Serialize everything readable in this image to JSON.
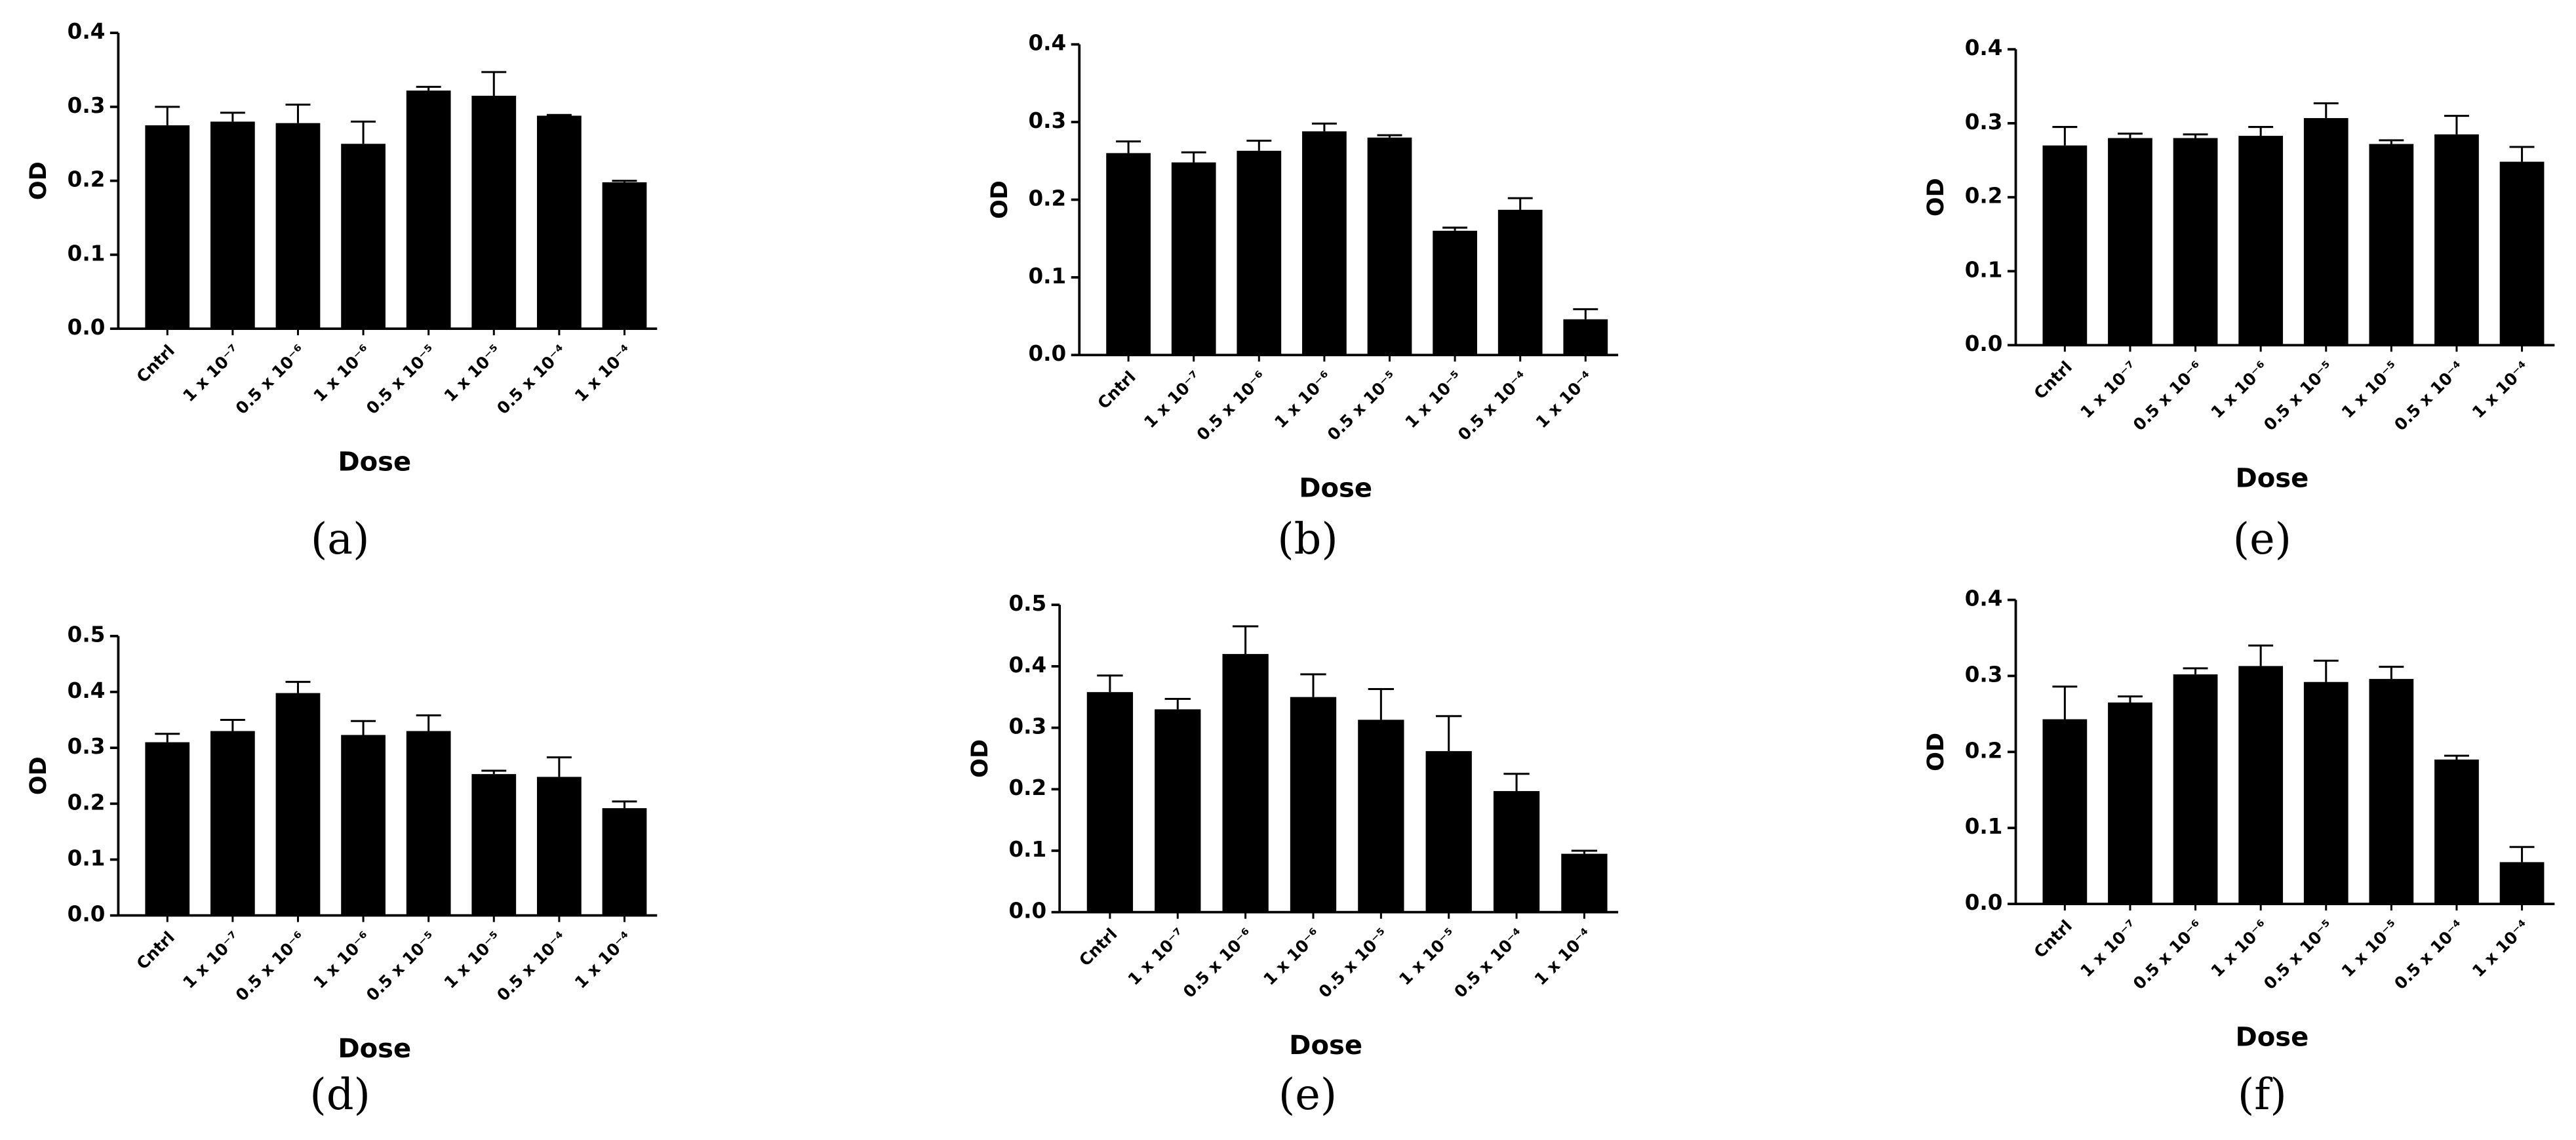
{
  "chart_data": [
    {
      "type": "bar",
      "caption": "(a)",
      "x_label": "Dose",
      "y_label": "OD",
      "categories": [
        "Cntrl",
        "1 x 10⁻⁷",
        "0.5 x 10⁻⁶",
        "1 x 10⁻⁶",
        "0.5 x 10⁻⁵",
        "1 x 10⁻⁵",
        "0.5 x 10⁻⁴",
        "1 x 10⁻⁴"
      ],
      "values": [
        0.275,
        0.28,
        0.278,
        0.25,
        0.322,
        0.315,
        0.288,
        0.198
      ],
      "errors": [
        0.025,
        0.012,
        0.025,
        0.03,
        0.005,
        0.032,
        0.001,
        0.002
      ],
      "color": "#000000",
      "ylim": [
        0,
        0.4
      ],
      "yticks": [
        {
          "value": 0,
          "label": "0.0"
        },
        0.1,
        0.2,
        0.3,
        0.4
      ]
    },
    {
      "type": "bar",
      "caption": "(b)",
      "x_label": "Dose",
      "y_label": "OD",
      "categories": [
        "Cntrl",
        "1 x 10⁻⁷",
        "0.5 x 10⁻⁶",
        "1 x 10⁻⁶",
        "0.5 x 10⁻⁵",
        "1 x 10⁻⁵",
        "0.5 x 10⁻⁴",
        "1 x 10⁻⁴"
      ],
      "values": [
        0.26,
        0.248,
        0.263,
        0.288,
        0.28,
        0.16,
        0.187,
        0.046
      ],
      "errors": [
        0.015,
        0.013,
        0.013,
        0.01,
        0.003,
        0.004,
        0.015,
        0.013
      ],
      "color": "#000000",
      "ylim": [
        0,
        0.4
      ],
      "yticks": [
        {
          "value": 0,
          "label": "0.0"
        },
        0.1,
        0.2,
        0.3,
        0.4
      ]
    },
    {
      "type": "bar",
      "caption": "(e)",
      "x_label": "Dose",
      "y_label": "OD",
      "categories": [
        "Cntrl",
        "1 x 10⁻⁷",
        "0.5 x 10⁻⁶",
        "1 x 10⁻⁶",
        "0.5 x 10⁻⁵",
        "1 x 10⁻⁵",
        "0.5 x 10⁻⁴",
        "1 x 10⁻⁴"
      ],
      "values": [
        0.27,
        0.28,
        0.28,
        0.283,
        0.307,
        0.272,
        0.285,
        0.248
      ],
      "errors": [
        0.025,
        0.006,
        0.005,
        0.012,
        0.02,
        0.005,
        0.025,
        0.02
      ],
      "color": "#000000",
      "ylim": [
        0,
        0.4
      ],
      "yticks": [
        {
          "value": 0,
          "label": "0.0"
        },
        0.1,
        0.2,
        0.3,
        0.4
      ]
    },
    {
      "type": "bar",
      "caption": "(d)",
      "x_label": "Dose",
      "y_label": "OD",
      "categories": [
        "Cntrl",
        "1 x 10⁻⁷",
        "0.5 x 10⁻⁶",
        "1 x 10⁻⁶",
        "0.5 x 10⁻⁵",
        "1 x 10⁻⁵",
        "0.5 x 10⁻⁴",
        "1 x 10⁻⁴"
      ],
      "values": [
        0.31,
        0.33,
        0.398,
        0.323,
        0.33,
        0.253,
        0.248,
        0.192
      ],
      "errors": [
        0.015,
        0.02,
        0.02,
        0.025,
        0.028,
        0.006,
        0.035,
        0.012
      ],
      "color": "#000000",
      "ylim": [
        0,
        0.5
      ],
      "yticks": [
        {
          "value": 0,
          "label": "0.0"
        },
        0.1,
        0.2,
        0.3,
        0.4,
        0.5
      ]
    },
    {
      "type": "bar",
      "caption": "(e)",
      "x_label": "Dose",
      "y_label": "OD",
      "categories": [
        "Cntrl",
        "1 x 10⁻⁷",
        "0.5 x 10⁻⁶",
        "1 x 10⁻⁶",
        "0.5 x 10⁻⁵",
        "1 x 10⁻⁵",
        "0.5 x 10⁻⁴",
        "1 x 10⁻⁴"
      ],
      "values": [
        0.358,
        0.33,
        0.42,
        0.35,
        0.313,
        0.262,
        0.197,
        0.095
      ],
      "errors": [
        0.027,
        0.017,
        0.045,
        0.037,
        0.05,
        0.057,
        0.028,
        0.005
      ],
      "color": "#000000",
      "ylim": [
        0,
        0.5
      ],
      "yticks": [
        {
          "value": 0,
          "label": "0.0"
        },
        0.1,
        0.2,
        0.3,
        0.4,
        0.5
      ]
    },
    {
      "type": "bar",
      "caption": "(f)",
      "x_label": "Dose",
      "y_label": "OD",
      "categories": [
        "Cntrl",
        "1 x 10⁻⁷",
        "0.5 x 10⁻⁶",
        "1 x 10⁻⁶",
        "0.5 x 10⁻⁵",
        "1 x 10⁻⁵",
        "0.5 x 10⁻⁴",
        "1 x 10⁻⁴"
      ],
      "values": [
        0.243,
        0.265,
        0.302,
        0.313,
        0.292,
        0.296,
        0.19,
        0.055
      ],
      "errors": [
        0.043,
        0.008,
        0.008,
        0.027,
        0.028,
        0.016,
        0.005,
        0.02
      ],
      "color": "#000000",
      "ylim": [
        0,
        0.4
      ],
      "yticks": [
        {
          "value": 0,
          "label": "0.0"
        },
        0.1,
        0.2,
        0.3,
        0.4
      ]
    }
  ]
}
